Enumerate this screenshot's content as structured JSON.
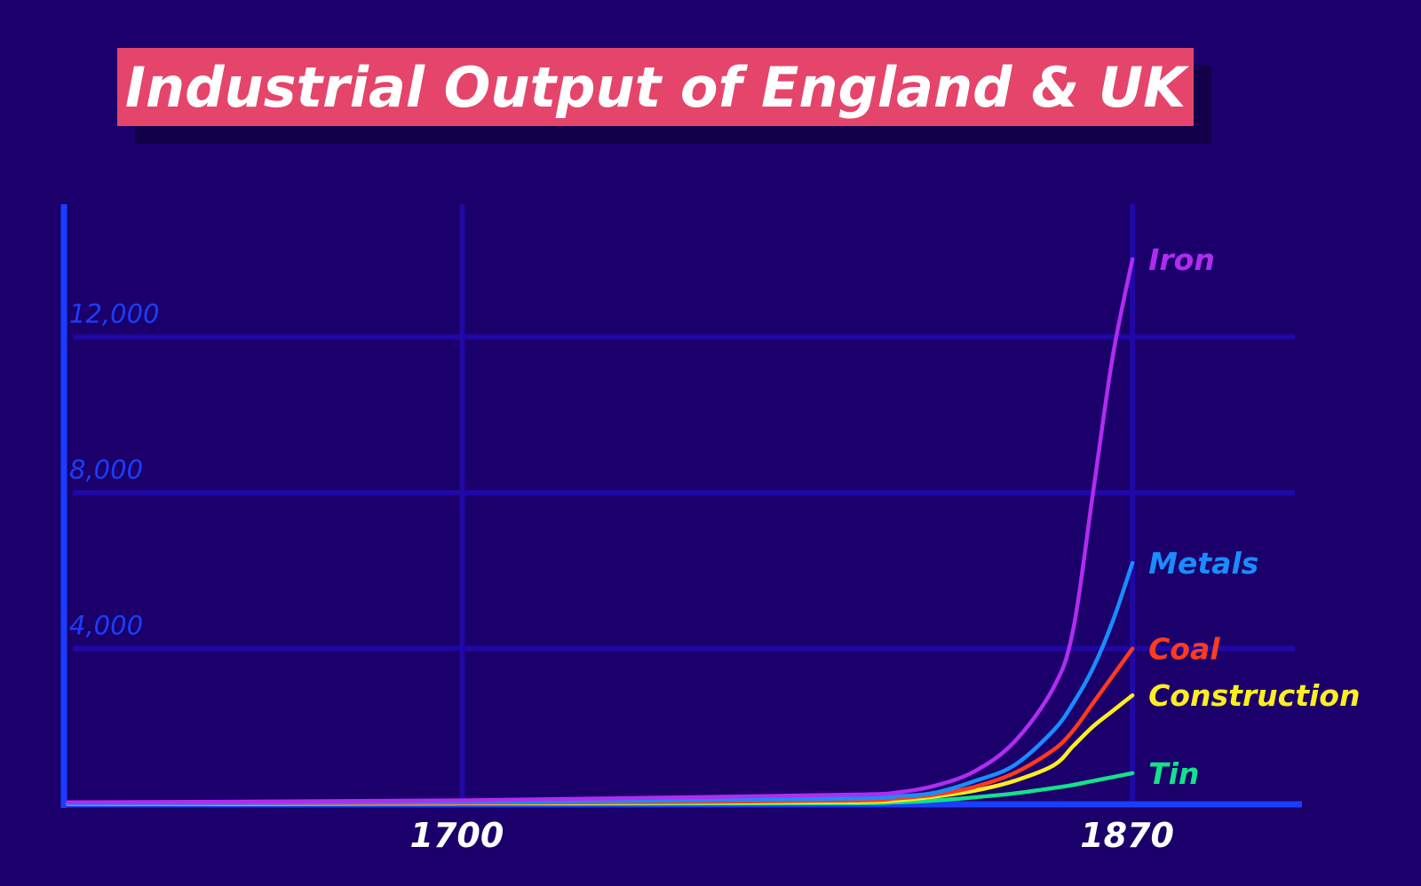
{
  "title": "Industrial Output of England & UK",
  "chart_data": {
    "type": "line",
    "title": "Industrial Output of England & UK",
    "xlabel": "",
    "ylabel": "",
    "xlim": [
      1599,
      1913
    ],
    "ylim": [
      0,
      14500
    ],
    "x_ticks": [
      1700,
      1870
    ],
    "y_ticks": [
      4000,
      8000,
      12000
    ],
    "y_tick_labels": [
      "4,000",
      "8,000",
      "12,000"
    ],
    "grid": true,
    "legend": "none (labels at line ends)",
    "series": [
      {
        "name": "Iron",
        "color": "#b02cf0",
        "x": [
          1600,
          1650,
          1700,
          1750,
          1800,
          1810,
          1820,
          1830,
          1840,
          1850,
          1855,
          1860,
          1865,
          1870
        ],
        "y": [
          50,
          70,
          100,
          170,
          250,
          300,
          480,
          850,
          1600,
          3000,
          4500,
          8000,
          11500,
          14000
        ]
      },
      {
        "name": "Metals",
        "color": "#1a8cff",
        "x": [
          1600,
          1650,
          1700,
          1750,
          1800,
          1810,
          1820,
          1830,
          1840,
          1850,
          1855,
          1860,
          1865,
          1870
        ],
        "y": [
          30,
          40,
          60,
          100,
          150,
          200,
          300,
          600,
          1000,
          1900,
          2600,
          3500,
          4700,
          6200
        ]
      },
      {
        "name": "Coal",
        "color": "#ff3b1f",
        "x": [
          1600,
          1650,
          1700,
          1750,
          1800,
          1810,
          1820,
          1830,
          1840,
          1850,
          1855,
          1860,
          1865,
          1870
        ],
        "y": [
          20,
          30,
          40,
          60,
          100,
          150,
          250,
          450,
          800,
          1400,
          1900,
          2600,
          3300,
          4000
        ]
      },
      {
        "name": "Construction",
        "color": "#ffee22",
        "x": [
          1600,
          1650,
          1700,
          1750,
          1800,
          1810,
          1820,
          1830,
          1840,
          1850,
          1855,
          1860,
          1865,
          1870
        ],
        "y": [
          15,
          20,
          30,
          40,
          60,
          100,
          200,
          350,
          600,
          1000,
          1500,
          2000,
          2400,
          2800
        ]
      },
      {
        "name": "Tin",
        "color": "#12e28a",
        "x": [
          1600,
          1650,
          1700,
          1750,
          1800,
          1810,
          1820,
          1830,
          1840,
          1850,
          1855,
          1860,
          1865,
          1870
        ],
        "y": [
          5,
          10,
          15,
          20,
          30,
          50,
          100,
          180,
          280,
          420,
          500,
          600,
          700,
          800
        ]
      }
    ]
  },
  "style": {
    "background": "#1b006b",
    "axis_color": "#1a3dff",
    "grid_color": "#1f08a6",
    "title_box_color": "#e5456a",
    "ytick_color": "#1a3dff",
    "xtick_color": "#ffffff"
  }
}
